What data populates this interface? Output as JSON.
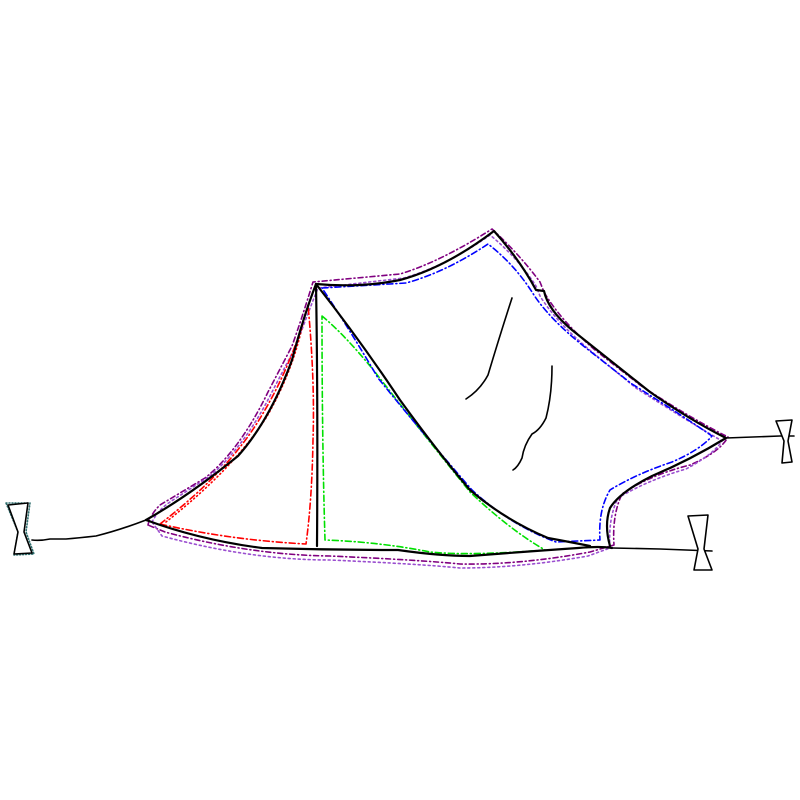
{
  "sketch": {
    "subject": "",
    "colors": {
      "ink": "#000000",
      "outline_outer": "#800080",
      "outline_outer_alt": "#9b4fd0",
      "outline_left_panel": "#ff0000",
      "outline_front_panel": "#00e000",
      "outline_roof": "#0000ff",
      "peg_outline": "#2f6f6f"
    },
    "parts": [
      "tent-body",
      "tent-pole",
      "front-seam",
      "roof-creases",
      "guy-ropes",
      "tent-pegs"
    ]
  }
}
